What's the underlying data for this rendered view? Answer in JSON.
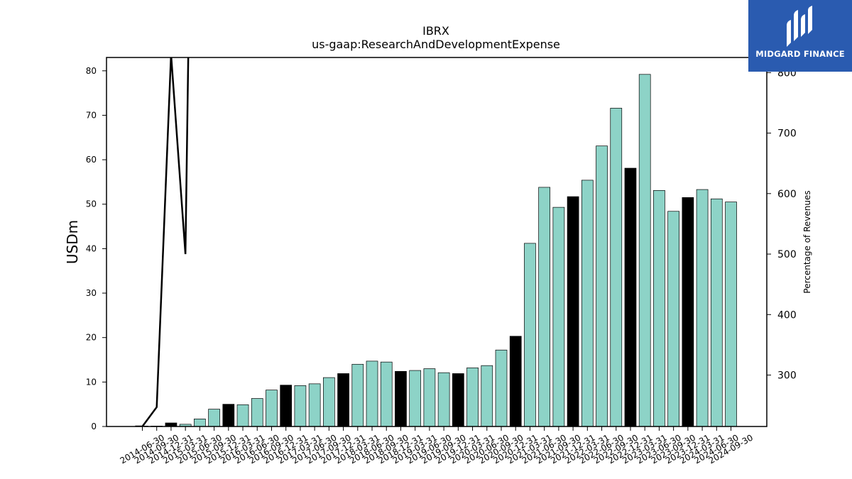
{
  "chart_data": {
    "type": "bar",
    "title": "IBRX",
    "subtitle": "us-gaap:ResearchAndDevelopmentExpense",
    "ylabel": "USDm",
    "y2label": "Percentage of Revenues",
    "ylim": [
      0,
      83
    ],
    "y2lim": [
      215,
      825
    ],
    "yticks": [
      0,
      10,
      20,
      30,
      40,
      50,
      60,
      70,
      80
    ],
    "y2ticks": [
      300,
      400,
      500,
      600,
      700,
      800
    ],
    "categories": [
      "2014-06-30",
      "2014-09-30",
      "2014-12-31",
      "2015-03-31",
      "2015-06-30",
      "2015-09-30",
      "2015-12-31",
      "2016-03-31",
      "2016-06-30",
      "2016-09-30",
      "2016-12-31",
      "2017-03-31",
      "2017-06-30",
      "2017-09-30",
      "2017-12-31",
      "2018-03-31",
      "2018-06-30",
      "2018-09-30",
      "2018-12-31",
      "2019-03-31",
      "2019-06-30",
      "2019-09-30",
      "2019-12-31",
      "2020-03-31",
      "2020-06-30",
      "2020-09-30",
      "2020-12-31",
      "2021-03-31",
      "2021-06-30",
      "2021-09-30",
      "2021-12-31",
      "2022-03-31",
      "2022-06-30",
      "2022-09-30",
      "2022-12-31",
      "2023-03-31",
      "2023-06-30",
      "2023-09-30",
      "2023-12-31",
      "2024-03-31",
      "2024-06-30",
      "2024-09-30"
    ],
    "series": [
      {
        "type": "bar",
        "values": [
          0.1,
          0.1,
          0.8,
          0.5,
          1.7,
          3.9,
          5.0,
          4.9,
          6.3,
          8.2,
          9.3,
          9.2,
          9.6,
          11.0,
          11.9,
          14.0,
          14.7,
          14.5,
          12.4,
          12.6,
          13.0,
          12.1,
          11.9,
          13.2,
          13.7,
          17.2,
          20.3,
          41.2,
          53.8,
          49.3,
          51.7,
          55.4,
          63.1,
          71.6,
          58.1,
          79.2,
          53.1,
          48.4,
          51.5,
          53.3,
          51.2,
          50.5
        ],
        "highlight_color": "#000000",
        "color": "#8dd3c7"
      },
      {
        "type": "line",
        "color": "#000000",
        "points": [
          [
            -0.5,
            215
          ],
          [
            0,
            215
          ],
          [
            1,
            247
          ],
          [
            2,
            830
          ],
          [
            3,
            500
          ],
          [
            3.2,
            830
          ]
        ]
      }
    ],
    "highlight_indices": [
      2,
      6,
      10,
      14,
      18,
      22,
      26,
      30,
      34,
      38
    ]
  },
  "logo": {
    "text": "MIDGARD FINANCE"
  }
}
